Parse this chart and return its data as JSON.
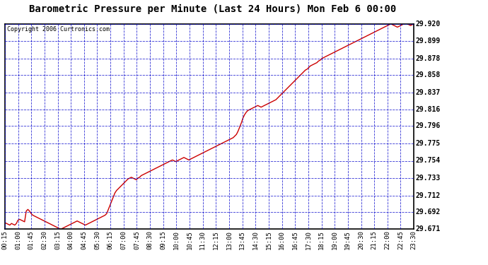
{
  "title": "Barometric Pressure per Minute (Last 24 Hours) Mon Feb 6 00:00",
  "copyright": "Copyright 2006 Curtronics.com",
  "bg_color": "#ffffff",
  "plot_bg_color": "#ffffff",
  "line_color": "#cc0000",
  "grid_color": "#0000cc",
  "border_color": "#000000",
  "yticks": [
    29.671,
    29.692,
    29.712,
    29.733,
    29.754,
    29.775,
    29.796,
    29.816,
    29.837,
    29.858,
    29.878,
    29.899,
    29.92
  ],
  "xtick_labels": [
    "00:15",
    "01:00",
    "01:45",
    "02:30",
    "03:15",
    "04:00",
    "04:45",
    "05:30",
    "06:15",
    "07:00",
    "07:45",
    "08:30",
    "09:15",
    "10:00",
    "10:45",
    "11:30",
    "12:15",
    "13:00",
    "13:45",
    "14:30",
    "15:15",
    "16:00",
    "16:45",
    "17:30",
    "18:15",
    "19:00",
    "19:45",
    "20:30",
    "21:15",
    "22:00",
    "22:45",
    "23:30"
  ],
  "pressure_data": [
    29.679,
    29.678,
    29.677,
    29.676,
    29.678,
    29.677,
    29.676,
    29.678,
    29.682,
    29.683,
    29.682,
    29.681,
    29.68,
    29.693,
    29.695,
    29.693,
    29.69,
    29.688,
    29.687,
    29.686,
    29.685,
    29.684,
    29.683,
    29.682,
    29.681,
    29.68,
    29.679,
    29.678,
    29.677,
    29.676,
    29.675,
    29.674,
    29.673,
    29.672,
    29.671,
    29.672,
    29.673,
    29.674,
    29.675,
    29.676,
    29.677,
    29.678,
    29.679,
    29.68,
    29.681,
    29.68,
    29.679,
    29.678,
    29.677,
    29.676,
    29.677,
    29.678,
    29.679,
    29.68,
    29.681,
    29.682,
    29.683,
    29.684,
    29.685,
    29.686,
    29.687,
    29.688,
    29.69,
    29.695,
    29.7,
    29.705,
    29.71,
    29.715,
    29.718,
    29.72,
    29.722,
    29.724,
    29.726,
    29.728,
    29.73,
    29.732,
    29.733,
    29.734,
    29.733,
    29.732,
    29.731,
    29.733,
    29.734,
    29.736,
    29.737,
    29.738,
    29.739,
    29.74,
    29.741,
    29.742,
    29.743,
    29.744,
    29.745,
    29.746,
    29.747,
    29.748,
    29.749,
    29.75,
    29.751,
    29.752,
    29.753,
    29.754,
    29.755,
    29.754,
    29.753,
    29.754,
    29.755,
    29.756,
    29.757,
    29.758,
    29.757,
    29.756,
    29.755,
    29.756,
    29.757,
    29.758,
    29.759,
    29.76,
    29.761,
    29.762,
    29.763,
    29.764,
    29.765,
    29.766,
    29.767,
    29.768,
    29.769,
    29.77,
    29.771,
    29.772,
    29.773,
    29.774,
    29.775,
    29.776,
    29.777,
    29.778,
    29.779,
    29.78,
    29.781,
    29.782,
    29.784,
    29.786,
    29.79,
    29.795,
    29.8,
    29.806,
    29.81,
    29.813,
    29.815,
    29.816,
    29.817,
    29.818,
    29.819,
    29.82,
    29.821,
    29.82,
    29.819,
    29.82,
    29.821,
    29.822,
    29.823,
    29.824,
    29.825,
    29.826,
    29.827,
    29.828,
    29.83,
    29.832,
    29.834,
    29.836,
    29.838,
    29.84,
    29.842,
    29.844,
    29.846,
    29.848,
    29.85,
    29.852,
    29.854,
    29.856,
    29.858,
    29.86,
    29.862,
    29.864,
    29.865,
    29.867,
    29.869,
    29.87,
    29.871,
    29.872,
    29.873,
    29.875,
    29.876,
    29.878,
    29.879,
    29.88,
    29.881,
    29.882,
    29.883,
    29.884,
    29.885,
    29.886,
    29.887,
    29.888,
    29.889,
    29.89,
    29.891,
    29.892,
    29.893,
    29.894,
    29.895,
    29.896,
    29.897,
    29.898,
    29.899,
    29.9,
    29.901,
    29.902,
    29.903,
    29.904,
    29.905,
    29.906,
    29.907,
    29.908,
    29.909,
    29.91,
    29.911,
    29.912,
    29.913,
    29.914,
    29.915,
    29.916,
    29.917,
    29.918,
    29.919,
    29.92,
    29.919,
    29.918,
    29.917,
    29.916,
    29.917,
    29.918,
    29.919,
    29.92,
    29.921,
    29.92,
    29.919,
    29.918,
    29.919,
    29.92
  ]
}
